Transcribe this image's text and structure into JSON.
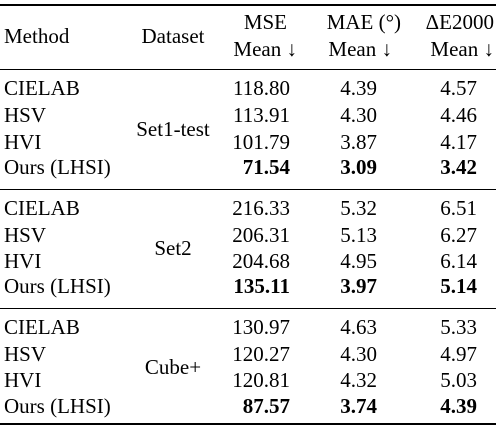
{
  "header": {
    "method": "Method",
    "dataset": "Dataset",
    "mse_line1": "MSE",
    "mse_line2": "Mean ↓",
    "mae_line1": "MAE (°)",
    "mae_line2": "Mean ↓",
    "de_line1": "ΔE2000",
    "de_line2": "Mean ↓"
  },
  "groups": [
    {
      "dataset": "Set1-test",
      "rows": [
        {
          "method": "CIELAB",
          "mse": "118.80",
          "mae": "4.39",
          "de": "4.57"
        },
        {
          "method": "HSV",
          "mse": "113.91",
          "mae": "4.30",
          "de": "4.46"
        },
        {
          "method": "HVI",
          "mse": "101.79",
          "mae": "3.87",
          "de": "4.17"
        },
        {
          "method": "Ours (LHSI)",
          "mse": "71.54",
          "mae": "3.09",
          "de": "3.42"
        }
      ]
    },
    {
      "dataset": "Set2",
      "rows": [
        {
          "method": "CIELAB",
          "mse": "216.33",
          "mae": "5.32",
          "de": "6.51"
        },
        {
          "method": "HSV",
          "mse": "206.31",
          "mae": "5.13",
          "de": "6.27"
        },
        {
          "method": "HVI",
          "mse": "204.68",
          "mae": "4.95",
          "de": "6.14"
        },
        {
          "method": "Ours (LHSI)",
          "mse": "135.11",
          "mae": "3.97",
          "de": "5.14"
        }
      ]
    },
    {
      "dataset": "Cube+",
      "rows": [
        {
          "method": "CIELAB",
          "mse": "130.97",
          "mae": "4.63",
          "de": "5.33"
        },
        {
          "method": "HSV",
          "mse": "120.27",
          "mae": "4.30",
          "de": "4.97"
        },
        {
          "method": "HVI",
          "mse": "120.81",
          "mae": "4.32",
          "de": "5.03"
        },
        {
          "method": "Ours (LHSI)",
          "mse": "87.57",
          "mae": "3.74",
          "de": "4.39"
        }
      ]
    }
  ]
}
